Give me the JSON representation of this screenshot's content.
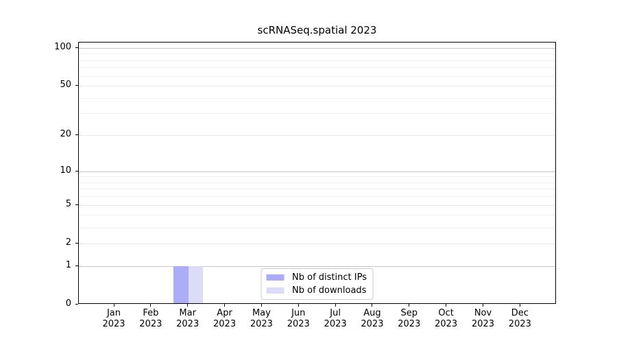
{
  "title": "scRNASeq.spatial 2023",
  "chart_data": {
    "type": "bar",
    "title": "scRNASeq.spatial 2023",
    "categories": [
      "Jan",
      "Feb",
      "Mar",
      "Apr",
      "May",
      "Jun",
      "Jul",
      "Aug",
      "Sep",
      "Oct",
      "Nov",
      "Dec"
    ],
    "x_year": "2023",
    "series": [
      {
        "name": "Nb of distinct IPs",
        "color": "#acacf7",
        "values": [
          0,
          0,
          1,
          0,
          0,
          0,
          0,
          0,
          0,
          0,
          0,
          0
        ]
      },
      {
        "name": "Nb of downloads",
        "color": "#dcdcf9",
        "values": [
          0,
          0,
          1,
          0,
          0,
          0,
          0,
          0,
          0,
          0,
          0,
          0
        ]
      }
    ],
    "xlabel": "",
    "ylabel": "",
    "y_scale": "log1p",
    "ylim": [
      0,
      110
    ],
    "y_ticks": [
      0,
      1,
      2,
      5,
      10,
      20,
      50,
      100
    ],
    "y_gridlines": {
      "major": [
        1,
        10,
        100
      ],
      "mid": [
        2,
        5,
        20,
        50
      ],
      "minor": [
        3,
        4,
        6,
        7,
        8,
        9,
        30,
        40,
        60,
        70,
        80,
        90
      ]
    },
    "grid": true,
    "legend_position": "lower center"
  }
}
